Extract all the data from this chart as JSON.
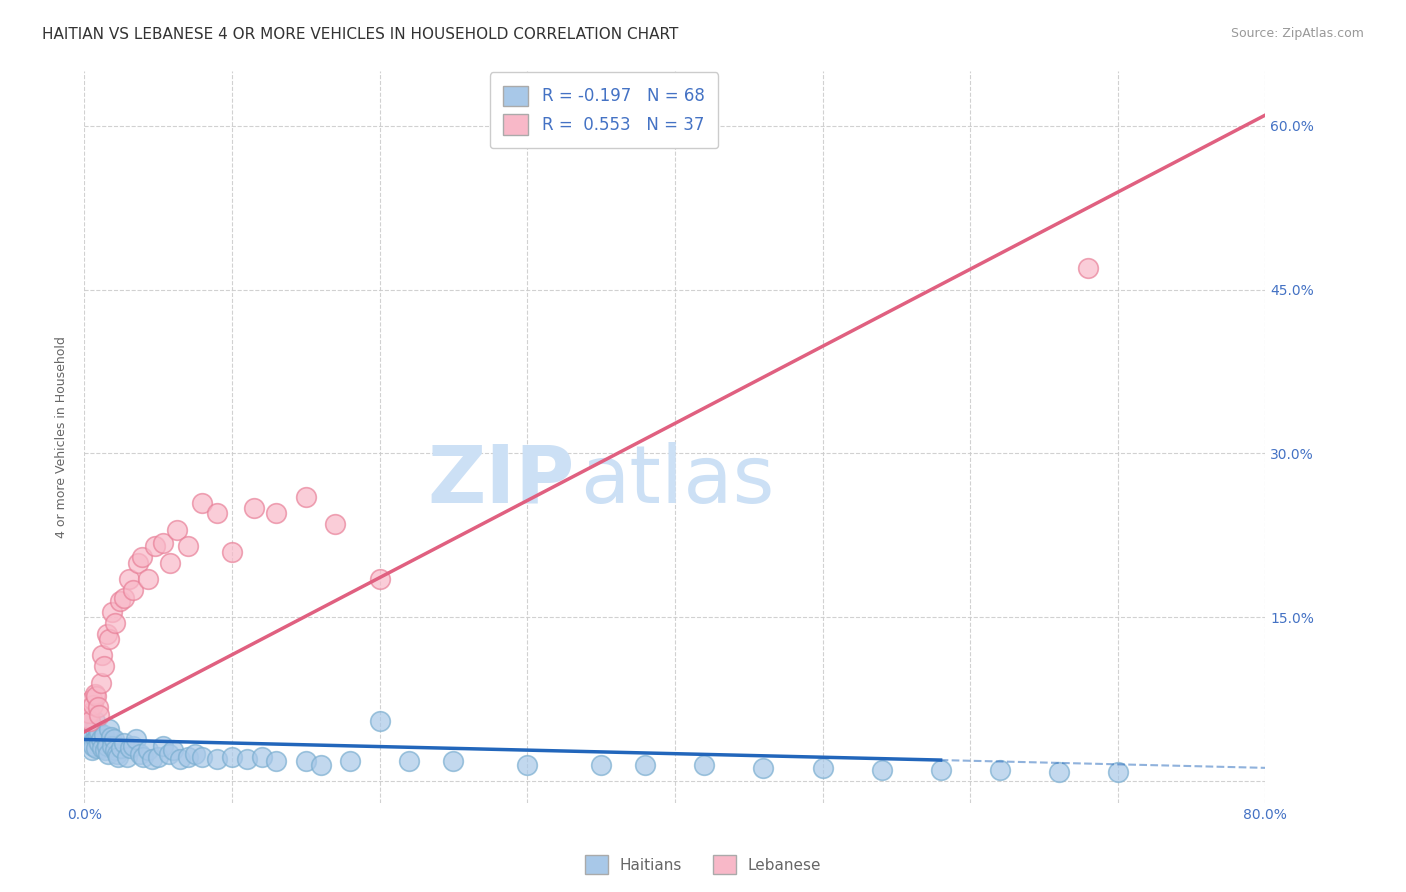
{
  "title": "HAITIAN VS LEBANESE 4 OR MORE VEHICLES IN HOUSEHOLD CORRELATION CHART",
  "source": "Source: ZipAtlas.com",
  "ylabel": "4 or more Vehicles in Household",
  "xlim": [
    0.0,
    0.8
  ],
  "ylim": [
    -0.02,
    0.65
  ],
  "xticks": [
    0.0,
    0.1,
    0.2,
    0.3,
    0.4,
    0.5,
    0.6,
    0.7,
    0.8
  ],
  "yticks": [
    0.0,
    0.15,
    0.3,
    0.45,
    0.6
  ],
  "haitian_dot_color": "#a8c8e8",
  "haitian_edge_color": "#7aaed0",
  "lebanese_dot_color": "#f8b8c8",
  "lebanese_edge_color": "#e88098",
  "haitian_line_color": "#2266bb",
  "lebanese_line_color": "#e06080",
  "watermark_zip": "ZIP",
  "watermark_atlas": "atlas",
  "watermark_color": "#cce0f5",
  "legend_haitian_label": "R = -0.197   N = 68",
  "legend_lebanese_label": "R =  0.553   N = 37",
  "haitian_color_patch": "#a8c8e8",
  "lebanese_color_patch": "#f8b8c8",
  "haitian_x": [
    0.001,
    0.002,
    0.003,
    0.003,
    0.004,
    0.005,
    0.005,
    0.006,
    0.007,
    0.007,
    0.008,
    0.008,
    0.009,
    0.01,
    0.01,
    0.011,
    0.012,
    0.013,
    0.014,
    0.015,
    0.016,
    0.017,
    0.018,
    0.019,
    0.02,
    0.021,
    0.022,
    0.023,
    0.025,
    0.027,
    0.029,
    0.031,
    0.033,
    0.035,
    0.038,
    0.04,
    0.043,
    0.046,
    0.05,
    0.053,
    0.057,
    0.06,
    0.065,
    0.07,
    0.075,
    0.08,
    0.09,
    0.1,
    0.11,
    0.12,
    0.13,
    0.15,
    0.16,
    0.18,
    0.2,
    0.22,
    0.25,
    0.3,
    0.35,
    0.38,
    0.42,
    0.46,
    0.5,
    0.54,
    0.58,
    0.62,
    0.66,
    0.7
  ],
  "haitian_y": [
    0.05,
    0.045,
    0.042,
    0.055,
    0.038,
    0.035,
    0.028,
    0.032,
    0.055,
    0.048,
    0.038,
    0.03,
    0.042,
    0.045,
    0.035,
    0.038,
    0.03,
    0.042,
    0.028,
    0.032,
    0.025,
    0.048,
    0.04,
    0.032,
    0.038,
    0.028,
    0.025,
    0.022,
    0.03,
    0.035,
    0.022,
    0.03,
    0.032,
    0.038,
    0.025,
    0.022,
    0.028,
    0.02,
    0.022,
    0.032,
    0.025,
    0.028,
    0.02,
    0.022,
    0.025,
    0.022,
    0.02,
    0.022,
    0.02,
    0.022,
    0.018,
    0.018,
    0.015,
    0.018,
    0.055,
    0.018,
    0.018,
    0.015,
    0.015,
    0.015,
    0.015,
    0.012,
    0.012,
    0.01,
    0.01,
    0.01,
    0.008,
    0.008
  ],
  "lebanese_x": [
    0.002,
    0.003,
    0.004,
    0.005,
    0.006,
    0.007,
    0.008,
    0.009,
    0.01,
    0.011,
    0.012,
    0.013,
    0.015,
    0.017,
    0.019,
    0.021,
    0.024,
    0.027,
    0.03,
    0.033,
    0.036,
    0.039,
    0.043,
    0.048,
    0.053,
    0.058,
    0.063,
    0.07,
    0.08,
    0.09,
    0.1,
    0.115,
    0.13,
    0.15,
    0.17,
    0.2,
    0.68
  ],
  "lebanese_y": [
    0.058,
    0.062,
    0.055,
    0.075,
    0.07,
    0.08,
    0.078,
    0.068,
    0.06,
    0.09,
    0.115,
    0.105,
    0.135,
    0.13,
    0.155,
    0.145,
    0.165,
    0.168,
    0.185,
    0.175,
    0.2,
    0.205,
    0.185,
    0.215,
    0.218,
    0.2,
    0.23,
    0.215,
    0.255,
    0.245,
    0.21,
    0.25,
    0.245,
    0.26,
    0.235,
    0.185,
    0.47
  ],
  "haitian_line_x0": 0.0,
  "haitian_line_x1": 0.8,
  "haitian_line_solid_end": 0.58,
  "lebanese_line_x0": 0.0,
  "lebanese_line_x1": 0.8,
  "lebanese_line_y0": 0.045,
  "lebanese_line_y1": 0.61,
  "haitian_line_y0": 0.038,
  "haitian_line_y1": 0.012,
  "grid_color": "#cccccc",
  "background_color": "#ffffff",
  "title_fontsize": 11,
  "axis_label_fontsize": 9,
  "tick_fontsize": 10,
  "legend_fontsize": 12,
  "footer_label_haitians": "Haitians",
  "footer_label_lebanese": "Lebanese",
  "tick_color": "#4472c4"
}
